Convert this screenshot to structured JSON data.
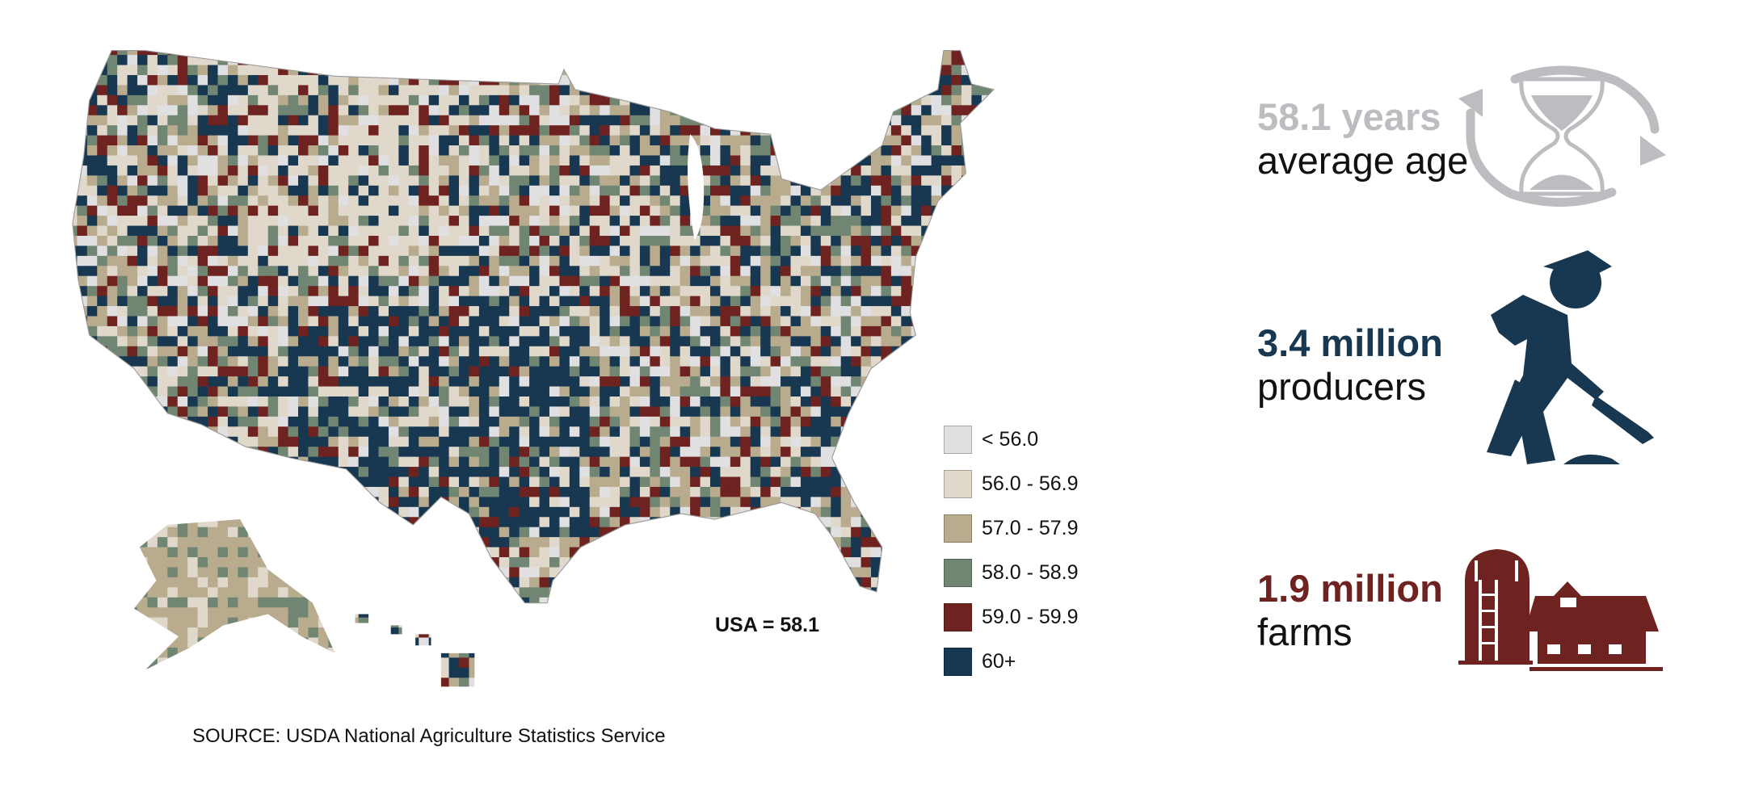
{
  "legend": {
    "items": [
      {
        "label": "< 56.0",
        "color": "#e0e0e2"
      },
      {
        "label": "56.0 - 56.9",
        "color": "#e0d9cb"
      },
      {
        "label": "57.0 - 57.9",
        "color": "#b9ab8e"
      },
      {
        "label": "58.0 - 58.9",
        "color": "#708673"
      },
      {
        "label": "59.0 - 59.9",
        "color": "#6e2320"
      },
      {
        "label": "60+",
        "color": "#183750"
      }
    ]
  },
  "usa_average": "USA = 58.1",
  "source": "SOURCE: USDA National Agriculture Statistics Service",
  "stats": [
    {
      "value": "58.1 years",
      "label": "average age",
      "color": "#bcbdc0",
      "icon": "hourglass-cycle-icon"
    },
    {
      "value": "3.4 million",
      "label": "producers",
      "color": "#183750",
      "icon": "farmer-shoveling-icon"
    },
    {
      "value": "1.9 million",
      "label": "farms",
      "color": "#6e2320",
      "icon": "barn-silo-icon"
    }
  ]
}
